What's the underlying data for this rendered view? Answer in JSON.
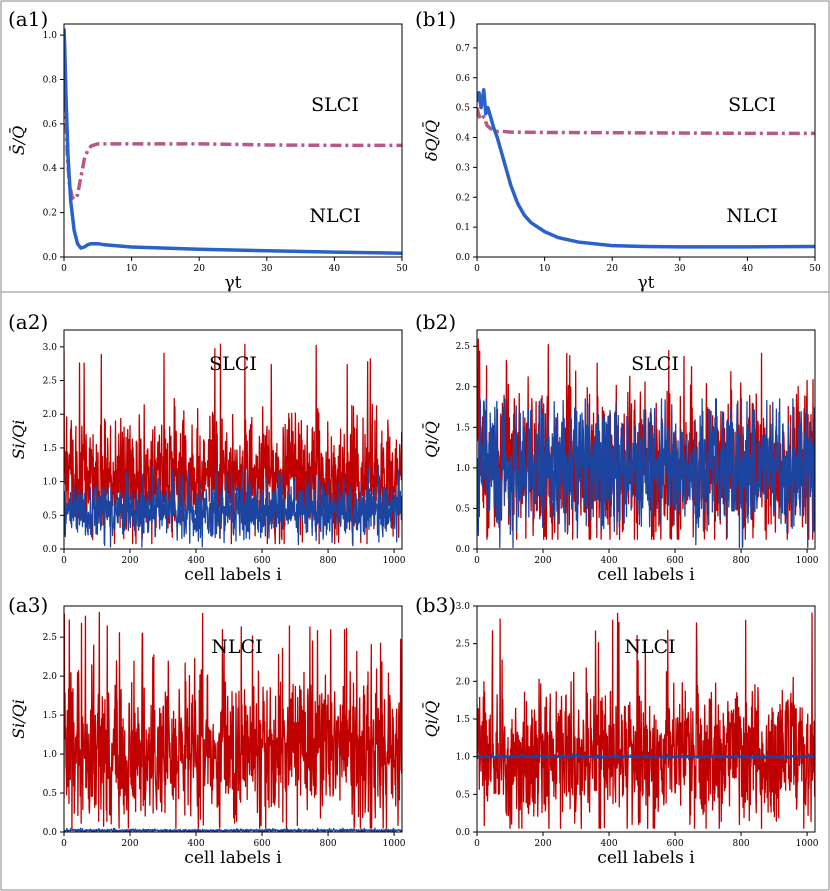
{
  "chart_data": [
    {
      "id": "a1",
      "type": "line",
      "panel_label": "(a1)",
      "xlabel": "γt",
      "ylabel": "S̄/Q̄",
      "xlim": [
        0,
        50
      ],
      "ylim": [
        0,
        1.05
      ],
      "xticks": [
        0,
        10,
        20,
        30,
        40,
        50
      ],
      "yticks": [
        0.0,
        0.2,
        0.4,
        0.6,
        0.8,
        1.0
      ],
      "annotations": [
        "SLCI",
        "NLCI"
      ],
      "series": [
        {
          "style": "dashdot",
          "color": "#b5588a",
          "x": [
            0,
            0.1,
            0.3,
            0.5,
            0.8,
            1.2,
            1.6,
            2.0,
            2.5,
            3.0,
            3.5,
            4.0,
            5.0,
            6.0,
            8.0,
            10.0,
            15.0,
            20.0,
            30.0,
            40.0,
            50.0
          ],
          "y": [
            1.0,
            0.92,
            0.62,
            0.45,
            0.33,
            0.27,
            0.26,
            0.28,
            0.36,
            0.44,
            0.48,
            0.5,
            0.51,
            0.51,
            0.51,
            0.51,
            0.51,
            0.51,
            0.505,
            0.503,
            0.503
          ]
        },
        {
          "style": "solid",
          "color": "#2a62c9",
          "x": [
            0,
            0.1,
            0.3,
            0.6,
            1.0,
            1.5,
            2.0,
            2.5,
            3.0,
            3.5,
            4.0,
            5.0,
            6.0,
            8.0,
            10.0,
            15.0,
            20.0,
            30.0,
            40.0,
            50.0
          ],
          "y": [
            1.03,
            0.95,
            0.72,
            0.45,
            0.25,
            0.12,
            0.06,
            0.04,
            0.045,
            0.055,
            0.06,
            0.06,
            0.055,
            0.05,
            0.045,
            0.04,
            0.035,
            0.028,
            0.022,
            0.017
          ]
        }
      ]
    },
    {
      "id": "b1",
      "type": "line",
      "panel_label": "(b1)",
      "xlabel": "γt",
      "ylabel": "δQ/Q̄",
      "xlim": [
        0,
        50
      ],
      "ylim": [
        0,
        0.78
      ],
      "xticks": [
        0,
        10,
        20,
        30,
        40,
        50
      ],
      "yticks": [
        0.0,
        0.1,
        0.2,
        0.3,
        0.4,
        0.5,
        0.6,
        0.7
      ],
      "annotations": [
        "SLCI",
        "NLCI"
      ],
      "series": [
        {
          "style": "dashdot",
          "color": "#b5588a",
          "x": [
            0,
            0.2,
            0.5,
            1.0,
            1.5,
            2.0,
            3.0,
            4.0,
            5.0,
            10.0,
            20.0,
            30.0,
            40.0,
            50.0
          ],
          "y": [
            0.5,
            0.48,
            0.46,
            0.47,
            0.44,
            0.43,
            0.42,
            0.42,
            0.418,
            0.417,
            0.416,
            0.415,
            0.414,
            0.414
          ]
        },
        {
          "style": "solid",
          "color": "#2a62c9",
          "x": [
            0,
            0.3,
            0.6,
            1.0,
            1.3,
            1.6,
            2.0,
            2.5,
            3.0,
            3.5,
            4.0,
            5.0,
            6.0,
            7.0,
            8.0,
            10.0,
            12.0,
            15.0,
            20.0,
            25.0,
            30.0,
            40.0,
            50.0
          ],
          "y": [
            0.52,
            0.55,
            0.5,
            0.56,
            0.48,
            0.5,
            0.47,
            0.43,
            0.4,
            0.36,
            0.32,
            0.24,
            0.18,
            0.14,
            0.115,
            0.085,
            0.065,
            0.05,
            0.038,
            0.035,
            0.034,
            0.034,
            0.035
          ]
        }
      ]
    },
    {
      "id": "a2",
      "type": "line",
      "panel_label": "(a2)",
      "xlabel": "cell labels i",
      "ylabel": "Si/Qi",
      "xlim": [
        0,
        1024
      ],
      "ylim": [
        0,
        3.25
      ],
      "xticks": [
        0,
        200,
        400,
        600,
        800,
        1000
      ],
      "yticks": [
        0.0,
        0.5,
        1.0,
        1.5,
        2.0,
        2.5,
        3.0
      ],
      "annotations": [
        "SLCI"
      ],
      "series": [
        {
          "style": "noise",
          "color": "#c00000",
          "n": 1024,
          "mean": 1.08,
          "sd": 0.45,
          "min": 0.08,
          "max": 3.2
        },
        {
          "style": "noise",
          "color": "#1b45a0",
          "n": 1024,
          "mean": 0.55,
          "sd": 0.2,
          "min": 0.03,
          "max": 1.25
        }
      ]
    },
    {
      "id": "b2",
      "type": "line",
      "panel_label": "(b2)",
      "xlabel": "cell labels i",
      "ylabel": "Qi/Q̄",
      "xlim": [
        0,
        1024
      ],
      "ylim": [
        0,
        2.7
      ],
      "xticks": [
        0,
        200,
        400,
        600,
        800,
        1000
      ],
      "yticks": [
        0.0,
        0.5,
        1.0,
        1.5,
        2.0,
        2.5
      ],
      "annotations": [
        "SLCI"
      ],
      "series": [
        {
          "style": "noise",
          "color": "#c00000",
          "n": 1024,
          "mean": 1.0,
          "sd": 0.45,
          "min": 0.12,
          "max": 2.63
        },
        {
          "style": "noise",
          "color": "#1b45a0",
          "n": 1024,
          "mean": 1.0,
          "sd": 0.38,
          "min": 0.02,
          "max": 1.85
        }
      ]
    },
    {
      "id": "a3",
      "type": "line",
      "panel_label": "(a3)",
      "xlabel": "cell labels i",
      "ylabel": "Si/Qi",
      "xlim": [
        0,
        1024
      ],
      "ylim": [
        0,
        2.9
      ],
      "xticks": [
        0,
        200,
        400,
        600,
        800,
        1000
      ],
      "yticks": [
        0.0,
        0.5,
        1.0,
        1.5,
        2.0,
        2.5
      ],
      "annotations": [
        "NLCI"
      ],
      "series": [
        {
          "style": "noise",
          "color": "#c00000",
          "n": 1024,
          "mean": 1.05,
          "sd": 0.48,
          "min": 0.05,
          "max": 2.83
        },
        {
          "style": "noise",
          "color": "#1b45a0",
          "n": 1024,
          "mean": 0.02,
          "sd": 0.008,
          "min": 0.0,
          "max": 0.05
        }
      ]
    },
    {
      "id": "b3",
      "type": "line",
      "panel_label": "(b3)",
      "xlabel": "cell labels i",
      "ylabel": "Qi/Q̄",
      "xlim": [
        0,
        1024
      ],
      "ylim": [
        0,
        3.0
      ],
      "xticks": [
        0,
        200,
        400,
        600,
        800,
        1000
      ],
      "yticks": [
        0.0,
        0.5,
        1.0,
        1.5,
        2.0,
        2.5,
        3.0
      ],
      "annotations": [
        "NLCI"
      ],
      "series": [
        {
          "style": "noise",
          "color": "#c00000",
          "n": 1024,
          "mean": 1.0,
          "sd": 0.45,
          "min": 0.05,
          "max": 2.92
        },
        {
          "style": "noise",
          "color": "#1b45a0",
          "n": 1024,
          "mean": 1.0,
          "sd": 0.012,
          "min": 0.96,
          "max": 1.04
        }
      ]
    }
  ]
}
